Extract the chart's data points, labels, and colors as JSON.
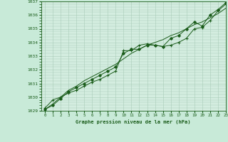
{
  "title": "Graphe pression niveau de la mer (hPa)",
  "background_color": "#c8ead8",
  "plot_bg_color": "#d4ede0",
  "grid_color": "#a8cbb8",
  "text_color": "#1a5c1a",
  "line_color": "#1a5c1a",
  "xlim": [
    -0.5,
    23
  ],
  "ylim": [
    1029,
    1037
  ],
  "xticks": [
    0,
    1,
    2,
    3,
    4,
    5,
    6,
    7,
    8,
    9,
    10,
    11,
    12,
    13,
    14,
    15,
    16,
    17,
    18,
    19,
    20,
    21,
    22,
    23
  ],
  "yticks": [
    1029,
    1030,
    1031,
    1032,
    1033,
    1034,
    1035,
    1036,
    1037
  ],
  "series1_x": [
    0,
    1,
    2,
    3,
    4,
    5,
    6,
    7,
    8,
    9,
    10,
    11,
    12,
    13,
    14,
    15,
    16,
    17,
    18,
    19,
    20,
    21,
    22,
    23
  ],
  "series1_y": [
    1029.2,
    1029.8,
    1030.0,
    1030.3,
    1030.5,
    1030.8,
    1031.1,
    1031.3,
    1031.6,
    1031.9,
    1033.4,
    1033.4,
    1033.8,
    1033.9,
    1033.8,
    1033.7,
    1033.8,
    1034.0,
    1034.3,
    1035.0,
    1035.1,
    1035.6,
    1036.3,
    1036.8
  ],
  "series2_x": [
    0,
    1,
    2,
    3,
    4,
    5,
    6,
    7,
    8,
    9,
    10,
    11,
    12,
    13,
    14,
    15,
    16,
    17,
    18,
    19,
    20,
    21,
    22,
    23
  ],
  "series2_y": [
    1029.1,
    1029.5,
    1030.0,
    1030.5,
    1030.8,
    1031.2,
    1031.5,
    1031.8,
    1032.1,
    1032.4,
    1032.8,
    1033.2,
    1033.5,
    1033.8,
    1034.0,
    1034.2,
    1034.5,
    1034.7,
    1035.0,
    1035.3,
    1035.5,
    1035.8,
    1036.1,
    1036.5
  ],
  "series3_x": [
    0,
    1,
    2,
    3,
    4,
    5,
    6,
    7,
    8,
    9,
    10,
    11,
    12,
    13,
    14,
    15,
    16,
    17,
    18,
    19,
    20,
    21,
    22,
    23
  ],
  "series3_y": [
    1029.1,
    1029.4,
    1029.9,
    1030.4,
    1030.7,
    1031.0,
    1031.3,
    1031.6,
    1031.9,
    1032.2,
    1033.2,
    1033.5,
    1033.5,
    1033.8,
    1033.8,
    1033.7,
    1034.3,
    1034.5,
    1035.0,
    1035.5,
    1035.2,
    1036.0,
    1036.4,
    1036.9
  ]
}
